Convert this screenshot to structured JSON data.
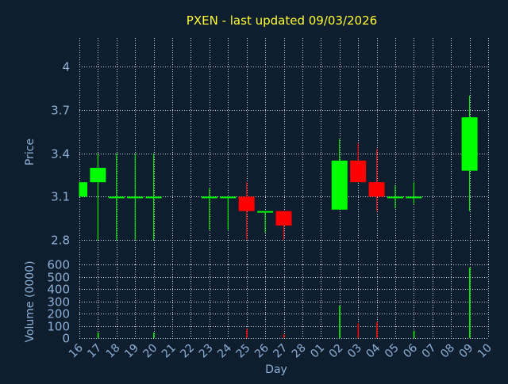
{
  "chart_title": "PXEN - last updated 09/03/2026",
  "colors": {
    "background": "#0f1e2e",
    "title": "#ffff33",
    "axis_text": "#8db0d6",
    "grid": "#c9d6e3",
    "up": "#00ff00",
    "down": "#ff0000"
  },
  "chart_data": {
    "type": "candlestick",
    "xlabel": "Day",
    "days": [
      "16",
      "17",
      "18",
      "19",
      "20",
      "21",
      "22",
      "23",
      "24",
      "25",
      "26",
      "27",
      "28",
      "01",
      "02",
      "03",
      "04",
      "05",
      "06",
      "07",
      "08",
      "09",
      "10"
    ],
    "price_panel": {
      "ylabel": "Price",
      "ylim": [
        2.63,
        4.2
      ],
      "yticks": [
        2.8,
        3.1,
        3.4,
        3.7,
        4
      ],
      "ytick_labels": [
        "2.8",
        "3.1",
        "3.4",
        "3.7",
        "4"
      ],
      "candles": [
        {
          "day": "16",
          "open": 3.1,
          "close": 3.2,
          "high": 3.2,
          "low": 3.1
        },
        {
          "day": "17",
          "open": 3.2,
          "close": 3.3,
          "high": 3.4,
          "low": 2.8
        },
        {
          "day": "18",
          "open": 3.1,
          "close": 3.1,
          "high": 3.4,
          "low": 2.8
        },
        {
          "day": "19",
          "open": 3.1,
          "close": 3.1,
          "high": 3.4,
          "low": 2.8
        },
        {
          "day": "20",
          "open": 3.1,
          "close": 3.1,
          "high": 3.4,
          "low": 2.8
        },
        {
          "day": "23",
          "open": 3.1,
          "close": 3.1,
          "high": 3.16,
          "low": 2.87
        },
        {
          "day": "24",
          "open": 3.1,
          "close": 3.1,
          "high": 3.1,
          "low": 2.87
        },
        {
          "day": "25",
          "open": 3.1,
          "close": 3.0,
          "high": 3.2,
          "low": 2.8
        },
        {
          "day": "26",
          "open": 3.0,
          "close": 3.0,
          "high": 3.0,
          "low": 2.85
        },
        {
          "day": "27",
          "open": 3.0,
          "close": 2.9,
          "high": 3.0,
          "low": 2.8
        },
        {
          "day": "02",
          "open": 3.01,
          "close": 3.35,
          "high": 3.5,
          "low": 3.01
        },
        {
          "day": "03",
          "open": 3.35,
          "close": 3.2,
          "high": 3.47,
          "low": 3.2
        },
        {
          "day": "04",
          "open": 3.2,
          "close": 3.1,
          "high": 3.43,
          "low": 3.0
        },
        {
          "day": "05",
          "open": 3.1,
          "close": 3.1,
          "high": 3.18,
          "low": 3.02
        },
        {
          "day": "06",
          "open": 3.1,
          "close": 3.1,
          "high": 3.2,
          "low": 3.05
        },
        {
          "day": "09",
          "open": 3.28,
          "close": 3.65,
          "high": 3.8,
          "low": 3.0
        }
      ]
    },
    "volume_panel": {
      "ylabel": "Volume (0000)",
      "ylim": [
        0,
        600
      ],
      "yticks": [
        0,
        100,
        200,
        300,
        400,
        500,
        600
      ],
      "ytick_labels": [
        "0",
        "100",
        "200",
        "300",
        "400",
        "500",
        "600"
      ],
      "bars": [
        {
          "day": "17",
          "value": 45,
          "direction": "up"
        },
        {
          "day": "20",
          "value": 45,
          "direction": "up"
        },
        {
          "day": "25",
          "value": 75,
          "direction": "down"
        },
        {
          "day": "27",
          "value": 30,
          "direction": "down"
        },
        {
          "day": "02",
          "value": 265,
          "direction": "up"
        },
        {
          "day": "03",
          "value": 120,
          "direction": "down"
        },
        {
          "day": "04",
          "value": 130,
          "direction": "down"
        },
        {
          "day": "06",
          "value": 60,
          "direction": "up"
        },
        {
          "day": "09",
          "value": 575,
          "direction": "up"
        }
      ]
    },
    "grid": true
  }
}
